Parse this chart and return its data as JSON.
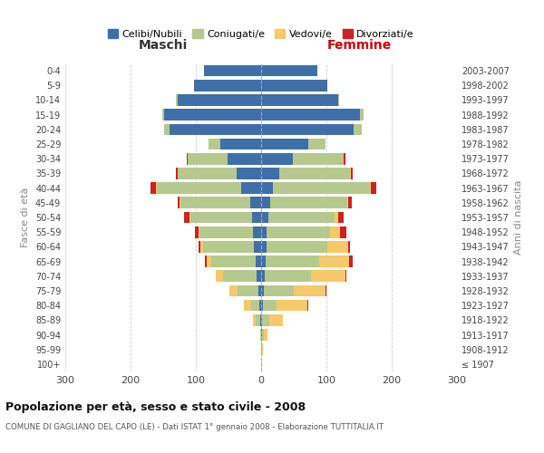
{
  "age_groups": [
    "100+",
    "95-99",
    "90-94",
    "85-89",
    "80-84",
    "75-79",
    "70-74",
    "65-69",
    "60-64",
    "55-59",
    "50-54",
    "45-49",
    "40-44",
    "35-39",
    "30-34",
    "25-29",
    "20-24",
    "15-19",
    "10-14",
    "5-9",
    "0-4"
  ],
  "birth_years": [
    "≤ 1907",
    "1908-1912",
    "1913-1917",
    "1918-1922",
    "1923-1927",
    "1928-1932",
    "1933-1937",
    "1938-1942",
    "1943-1947",
    "1948-1952",
    "1953-1957",
    "1958-1962",
    "1963-1967",
    "1968-1972",
    "1973-1977",
    "1978-1982",
    "1983-1987",
    "1988-1992",
    "1993-1997",
    "1998-2002",
    "2003-2007"
  ],
  "males": {
    "celibi": [
      0,
      0,
      0,
      2,
      3,
      4,
      7,
      9,
      11,
      12,
      14,
      16,
      30,
      38,
      52,
      62,
      140,
      148,
      128,
      103,
      88
    ],
    "coniugati": [
      0,
      0,
      1,
      6,
      12,
      32,
      52,
      68,
      78,
      82,
      95,
      108,
      130,
      90,
      60,
      18,
      8,
      4,
      2,
      0,
      0
    ],
    "vedovi": [
      0,
      0,
      1,
      5,
      12,
      12,
      10,
      6,
      4,
      2,
      1,
      1,
      1,
      0,
      0,
      0,
      0,
      0,
      0,
      0,
      0
    ],
    "divorziati": [
      0,
      0,
      0,
      0,
      0,
      0,
      0,
      3,
      3,
      5,
      8,
      3,
      8,
      2,
      2,
      1,
      0,
      0,
      0,
      0,
      0
    ]
  },
  "females": {
    "nubili": [
      0,
      0,
      1,
      2,
      3,
      4,
      5,
      7,
      9,
      9,
      11,
      14,
      18,
      28,
      48,
      72,
      142,
      152,
      118,
      102,
      86
    ],
    "coniugate": [
      0,
      1,
      3,
      10,
      20,
      46,
      72,
      82,
      92,
      96,
      102,
      118,
      148,
      108,
      78,
      26,
      12,
      5,
      2,
      0,
      0
    ],
    "vedove": [
      0,
      2,
      6,
      22,
      48,
      48,
      52,
      46,
      32,
      16,
      5,
      2,
      2,
      1,
      1,
      0,
      0,
      0,
      0,
      0,
      0
    ],
    "divorziate": [
      0,
      0,
      0,
      0,
      1,
      2,
      2,
      5,
      3,
      9,
      8,
      5,
      9,
      3,
      2,
      0,
      0,
      0,
      0,
      0,
      0
    ]
  },
  "colors": {
    "celibi": "#3e6fa8",
    "coniugati": "#b5c98e",
    "vedovi": "#f5c96a",
    "divorziati": "#cc2222"
  },
  "title": "Popolazione per età, sesso e stato civile - 2008",
  "subtitle": "COMUNE DI GAGLIANO DEL CAPO (LE) - Dati ISTAT 1° gennaio 2008 - Elaborazione TUTTITALIA.IT",
  "xlabel_left": "Maschi",
  "xlabel_right": "Femmine",
  "ylabel_left": "Fasce di età",
  "ylabel_right": "Anni di nascita",
  "xlim": 300,
  "bg_color": "#ffffff",
  "grid_color": "#cccccc",
  "legend_labels": [
    "Celibi/Nubili",
    "Coniugati/e",
    "Vedovi/e",
    "Divorziati/e"
  ]
}
